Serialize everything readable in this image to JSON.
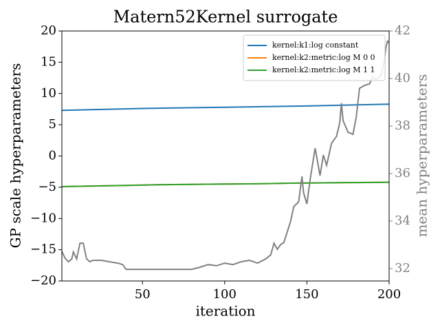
{
  "chart_data": {
    "type": "line",
    "title": "Matern52Kernel surrogate",
    "x_label": "iteration",
    "y_label": "GP scale hyperparameters",
    "y2_label": "mean hyperparameters",
    "xlim": [
      1,
      200
    ],
    "xticks": [
      50,
      100,
      150,
      200
    ],
    "ylim": [
      -20,
      20
    ],
    "yticks": [
      {
        "value": -20,
        "label": "−20"
      },
      {
        "value": -15,
        "label": "−15"
      },
      {
        "value": -10,
        "label": "−10"
      },
      {
        "value": -5,
        "label": "−5"
      },
      0,
      5,
      10,
      15,
      20
    ],
    "y2lim": [
      31.48,
      42
    ],
    "y2ticks": [
      32,
      34,
      36,
      38,
      40,
      42
    ],
    "legend": "upper right",
    "series": [
      {
        "name": "kernel:k1:log constant",
        "color": "#1f77b4",
        "x": [
          1,
          50,
          100,
          150,
          200
        ],
        "values": [
          7.3,
          7.6,
          7.8,
          8.0,
          8.3
        ]
      },
      {
        "name": "kernel:k2:metric:log M 0 0",
        "color": "#ff7f0e",
        "x": [
          1,
          20,
          40,
          60,
          80,
          100,
          120,
          140,
          160,
          180,
          200
        ],
        "values": [
          -4.9,
          -4.8,
          -4.7,
          -4.6,
          -4.55,
          -4.5,
          -4.45,
          -4.35,
          -4.3,
          -4.25,
          -4.2
        ]
      },
      {
        "name": "kernel:k2:metric:log M 1 1",
        "color": "#2ca02c",
        "x": [
          1,
          20,
          40,
          60,
          80,
          100,
          120,
          140,
          160,
          180,
          200
        ],
        "values": [
          -4.9,
          -4.8,
          -4.7,
          -4.6,
          -4.55,
          -4.5,
          -4.45,
          -4.35,
          -4.3,
          -4.25,
          -4.2
        ]
      },
      {
        "color": "#808080",
        "axis": "y2",
        "x": [
          1,
          3,
          5,
          7,
          8,
          10,
          12,
          14,
          16,
          18,
          20,
          25,
          30,
          35,
          38,
          40,
          45,
          80,
          85,
          90,
          95,
          100,
          105,
          110,
          115,
          120,
          125,
          128,
          130,
          132,
          134,
          136,
          140,
          142,
          145,
          147,
          148,
          150,
          152,
          155,
          158,
          160,
          162,
          165,
          168,
          170,
          171,
          172,
          175,
          178,
          180,
          182,
          185,
          188,
          190,
          192,
          195,
          197,
          198,
          199,
          200
        ],
        "values": [
          32.72,
          32.43,
          32.29,
          32.41,
          32.7,
          32.41,
          33.07,
          33.07,
          32.41,
          32.29,
          32.35,
          32.35,
          32.29,
          32.23,
          32.17,
          31.97,
          31.97,
          31.97,
          32.06,
          32.17,
          32.12,
          32.23,
          32.17,
          32.29,
          32.35,
          32.23,
          32.41,
          32.58,
          33.07,
          32.81,
          33.01,
          33.1,
          33.97,
          34.61,
          34.81,
          35.88,
          35.19,
          34.72,
          35.77,
          37.07,
          35.91,
          36.78,
          36.35,
          37.28,
          37.57,
          38.14,
          38.96,
          38.23,
          37.74,
          37.65,
          38.38,
          39.59,
          39.71,
          39.77,
          40.06,
          39.94,
          40.12,
          40.7,
          41.28,
          41.57,
          41.51
        ]
      }
    ]
  }
}
